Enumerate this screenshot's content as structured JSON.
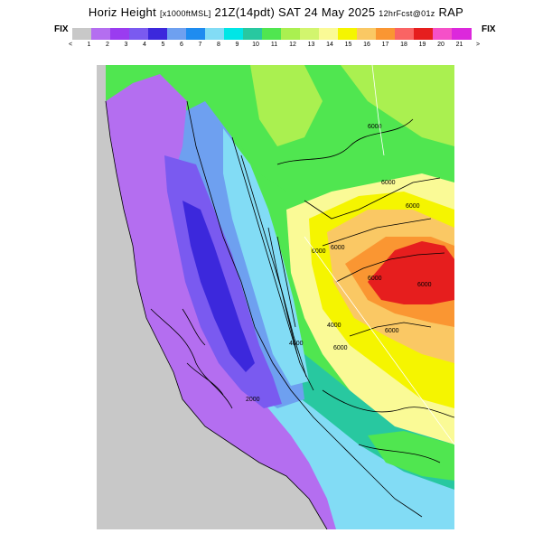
{
  "header": {
    "main_title": "Horiz Height",
    "units": "[x1000ftMSL]",
    "valid_time": "21Z(14pdt) SAT 24 May 2025",
    "forecast": "12hrFcst@01z",
    "model": "RAP"
  },
  "legend": {
    "left_label": "FIX",
    "right_label": "FIX",
    "tick_labels": [
      "<",
      "1",
      "2",
      "3",
      "4",
      "5",
      "6",
      "7",
      "8",
      "9",
      "10",
      "11",
      "12",
      "13",
      "14",
      "15",
      "16",
      "17",
      "18",
      "19",
      "20",
      "21",
      ">"
    ],
    "colors": [
      "#c8c8c8",
      "#b46ef0",
      "#9a3cf0",
      "#7a5af0",
      "#3c28dc",
      "#6ea0f0",
      "#1e8cf0",
      "#82dcf5",
      "#00e6e6",
      "#28c8a0",
      "#50e650",
      "#aaf050",
      "#d2f56e",
      "#fafa96",
      "#f5f500",
      "#fac864",
      "#fa9632",
      "#fa6464",
      "#e61e1e",
      "#f550c8",
      "#dc28dc"
    ]
  },
  "map": {
    "contour_labels": [
      "6000",
      "6000",
      "6000",
      "6000",
      "6000",
      "6000",
      "6000",
      "6000",
      "6000",
      "4000",
      "4000",
      "2000"
    ],
    "colors": {
      "ocean": "#c8c8c8",
      "coast_low": "#b46ef0",
      "valley": "#7a5af0",
      "deep": "#3c28dc",
      "low_blue": "#6ea0f0",
      "mid_blue": "#1e8cf0",
      "cyan": "#82dcf5",
      "teal": "#28c8a0",
      "green": "#50e650",
      "lime": "#aaf050",
      "yellow_green": "#d2f56e",
      "pale_yellow": "#fafa96",
      "yellow": "#f5f500",
      "orange_light": "#fac864",
      "orange": "#fa9632",
      "salmon": "#fa6464",
      "red": "#e61e1e"
    }
  }
}
